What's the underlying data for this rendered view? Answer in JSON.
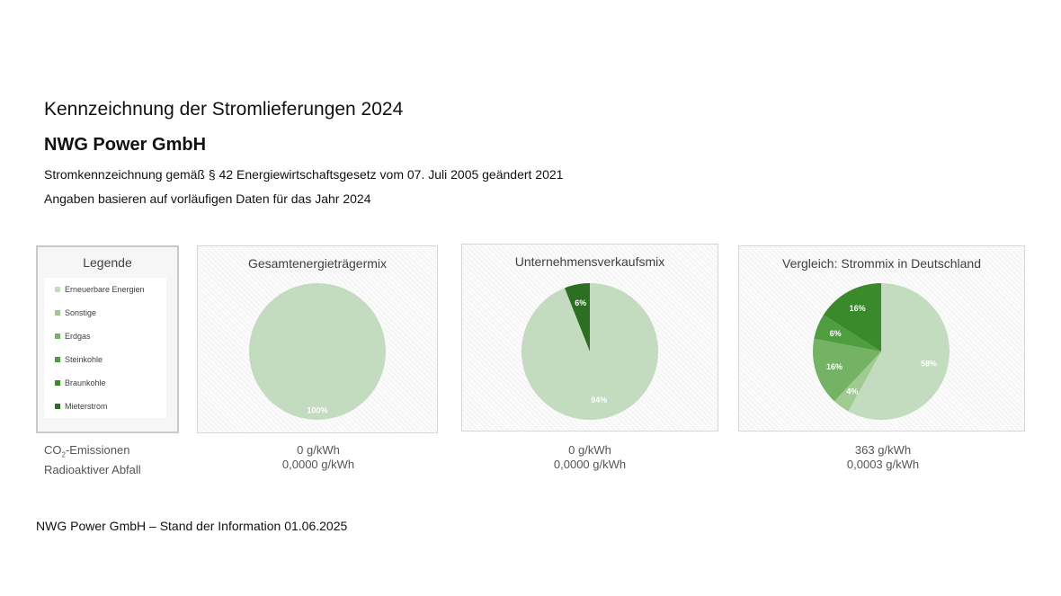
{
  "header": {
    "title": "Kennzeichnung der Stromlieferungen 2024",
    "company": "NWG Power GmbH",
    "subtitle1": "Stromkennzeichnung gemäß § 42 Energiewirtschaftsgesetz vom 07. Juli 2005 geändert 2021",
    "subtitle2": "Angaben basieren auf vorläufigen Daten für das Jahr 2024"
  },
  "legend": {
    "title": "Legende",
    "items": [
      {
        "label": "Erneuerbare Energien",
        "color": "#c3dbbe"
      },
      {
        "label": "Sonstige",
        "color": "#9fcb93"
      },
      {
        "label": "Erdgas",
        "color": "#74b264"
      },
      {
        "label": "Steinkohle",
        "color": "#4e9e40"
      },
      {
        "label": "Braunkohle",
        "color": "#3a8a2c"
      },
      {
        "label": "Mieterstrom",
        "color": "#2c6e22"
      }
    ]
  },
  "emissions": {
    "co2_label_main": "CO",
    "co2_label_sub": "2",
    "co2_label_rest": "-Emissionen",
    "waste_label": "Radioaktiver Abfall",
    "values": [
      {
        "co2": "0 g/kWh",
        "waste": "0,0000 g/kWh"
      },
      {
        "co2": "0 g/kWh",
        "waste": "0,0000 g/kWh"
      },
      {
        "co2": "363 g/kWh",
        "waste": "0,0003 g/kWh"
      }
    ]
  },
  "footer": "NWG Power GmbH – Stand der Information 01.06.2025",
  "chart_data": [
    {
      "type": "pie",
      "title": "Gesamtenergieträgermix",
      "slices": [
        {
          "name": "Erneuerbare Energien",
          "value": 100,
          "label": "100%",
          "color": "#c3dbbe"
        }
      ]
    },
    {
      "type": "pie",
      "title": "Unternehmensverkaufsmix",
      "slices": [
        {
          "name": "Erneuerbare Energien",
          "value": 94,
          "label": "94%",
          "color": "#c3dbbe"
        },
        {
          "name": "Mieterstrom",
          "value": 6,
          "label": "6%",
          "color": "#2c6e22"
        }
      ]
    },
    {
      "type": "pie",
      "title": "Vergleich: Strommix in Deutschland",
      "slices": [
        {
          "name": "Erneuerbare Energien",
          "value": 58,
          "label": "58%",
          "color": "#c3dbbe"
        },
        {
          "name": "Sonstige",
          "value": 4,
          "label": "4%",
          "color": "#9fcb93"
        },
        {
          "name": "Erdgas",
          "value": 16,
          "label": "16%",
          "color": "#74b264"
        },
        {
          "name": "Steinkohle",
          "value": 6,
          "label": "6%",
          "color": "#4e9e40"
        },
        {
          "name": "Braunkohle",
          "value": 16,
          "label": "16%",
          "color": "#3a8a2c"
        }
      ]
    }
  ]
}
